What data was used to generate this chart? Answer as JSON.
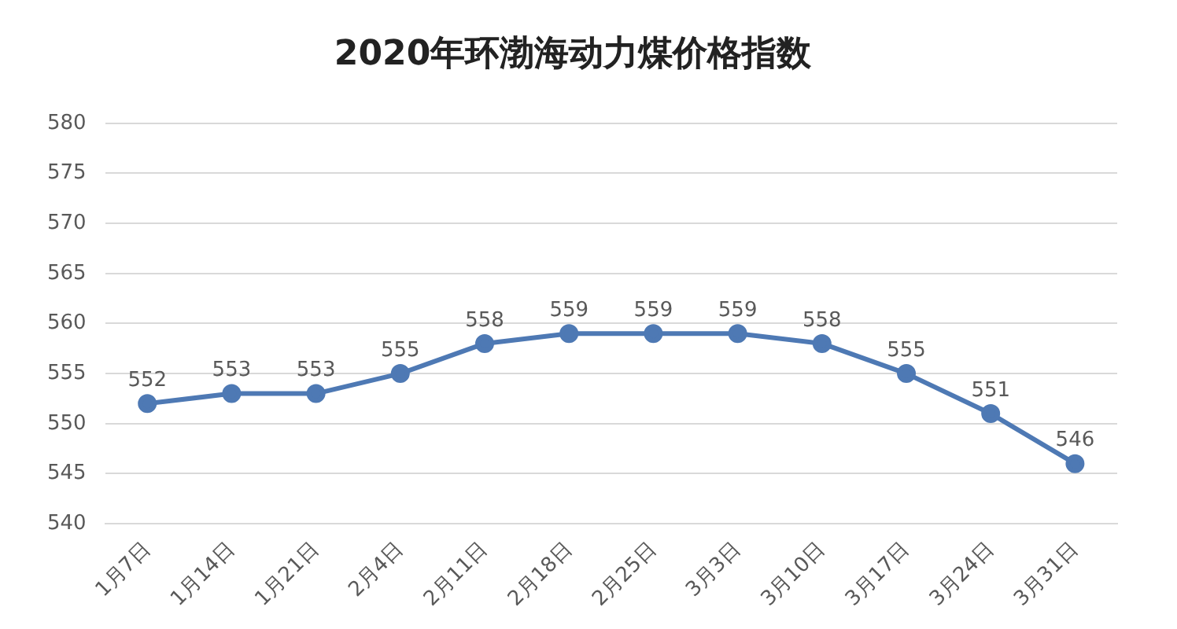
{
  "chart_data": {
    "type": "line",
    "title": "2020年环渤海动力煤价格指数",
    "categories": [
      "1月7日",
      "1月14日",
      "1月21日",
      "2月4日",
      "2月11日",
      "2月18日",
      "2月25日",
      "3月3日",
      "3月10日",
      "3月17日",
      "3月24日",
      "3月31日"
    ],
    "series": [
      {
        "color": "#4e79b4",
        "values": [
          552,
          553,
          553,
          555,
          558,
          559,
          559,
          559,
          558,
          555,
          551,
          546
        ]
      }
    ],
    "ylim": [
      540,
      580
    ],
    "yticks": [
      540,
      545,
      550,
      555,
      560,
      565,
      570,
      575,
      580
    ],
    "grid": "y",
    "legend": false,
    "marker": "circle",
    "line_style": "solid",
    "data_labels": true
  }
}
